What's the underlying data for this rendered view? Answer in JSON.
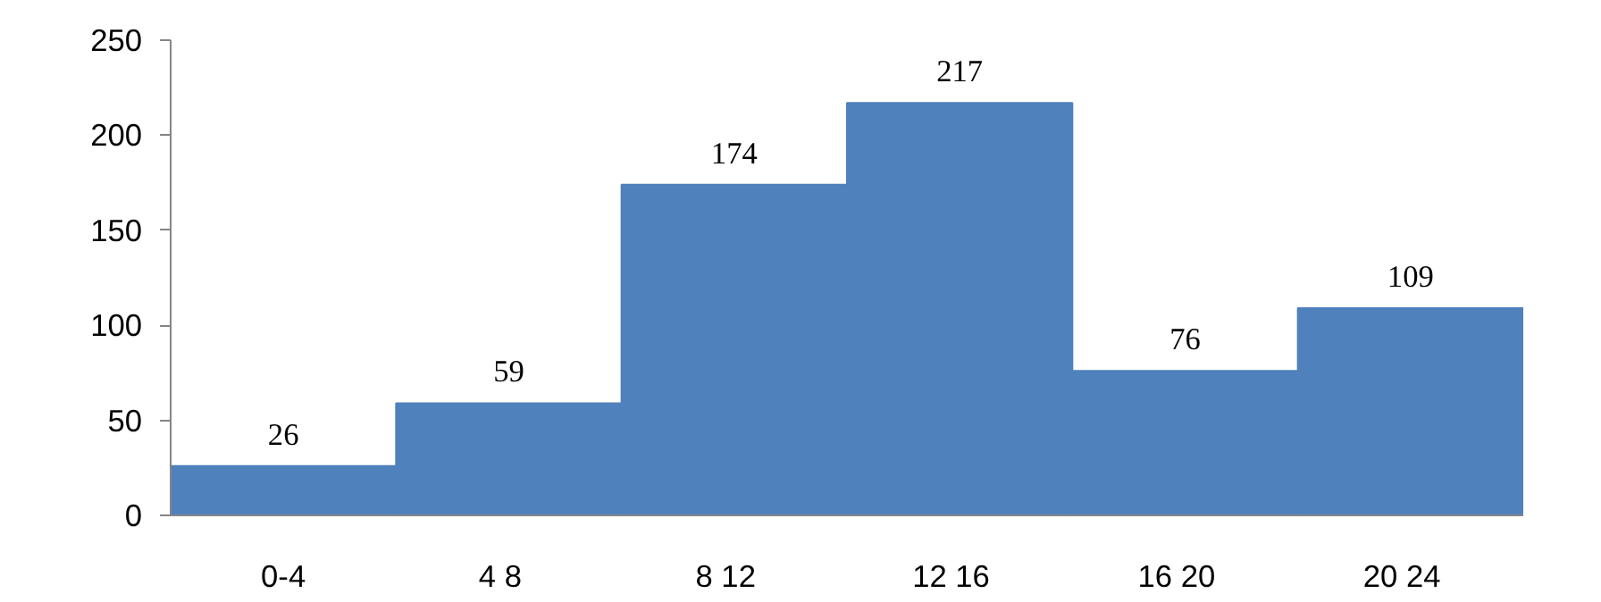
{
  "chart_data": {
    "type": "bar",
    "categories": [
      "0-4",
      "4   8",
      "8   12",
      "12   16",
      "16   20",
      "20   24"
    ],
    "values": [
      26,
      59,
      174,
      217,
      76,
      109
    ],
    "color": "#4f81bd",
    "ylim": [
      0,
      250
    ],
    "yticks": [
      0,
      50,
      100,
      150,
      200,
      250
    ],
    "grid": false,
    "data_labels": true
  }
}
